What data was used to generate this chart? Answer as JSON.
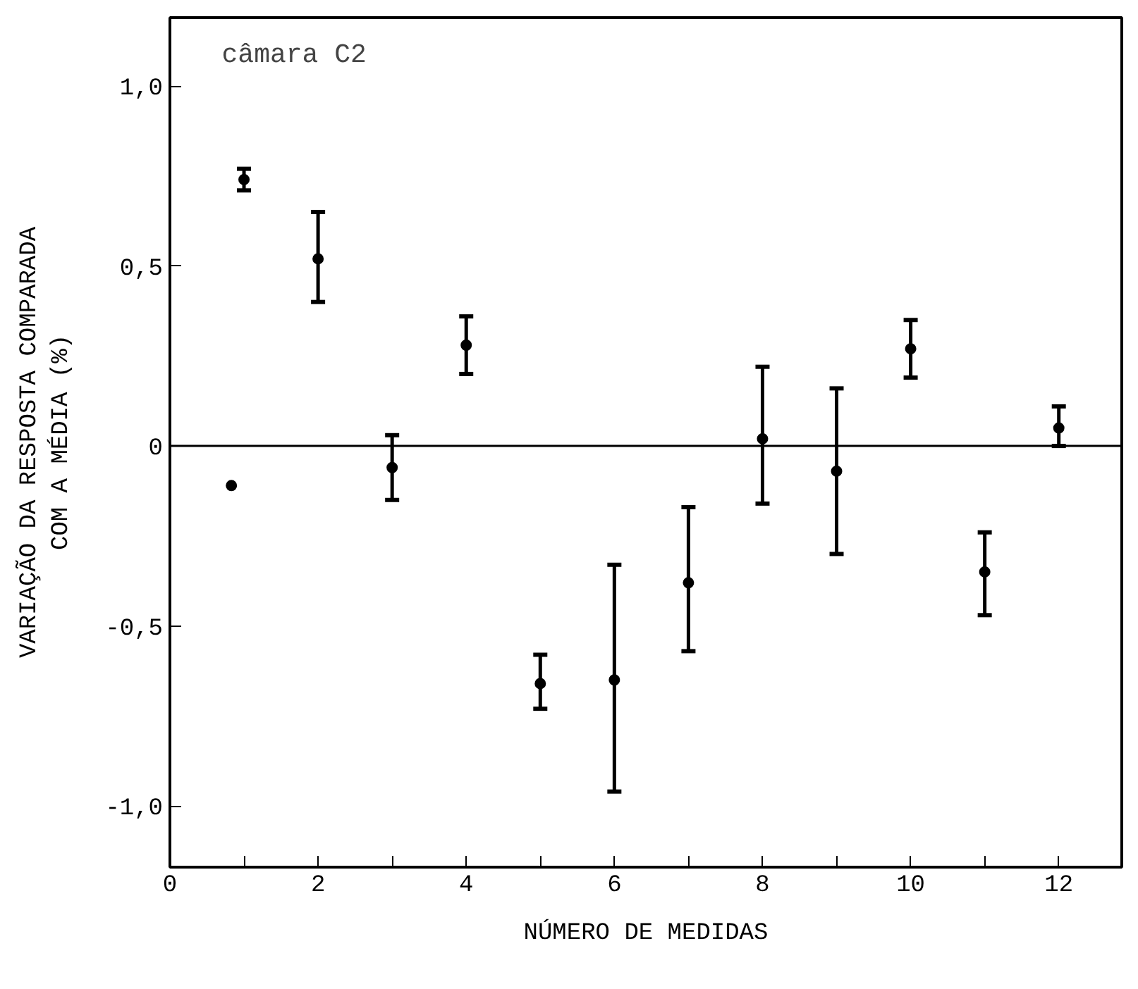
{
  "chart_data": {
    "type": "scatter",
    "xlabel": "NÚMERO DE MEDIDAS",
    "ylabel": "VARIAÇÃO DA RESPOSTA COMPARADA\nCOM A MÉDIA (%)",
    "annotations": [
      "câmara C2"
    ],
    "series": [
      {
        "color": "#000000",
        "x": [
          0.83,
          1,
          2,
          3,
          4,
          5,
          6,
          7,
          8,
          9,
          10,
          11,
          12
        ],
        "values": [
          -0.11,
          0.74,
          0.52,
          -0.06,
          0.28,
          -0.66,
          -0.65,
          -0.38,
          0.02,
          -0.07,
          0.27,
          -0.35,
          0.05
        ],
        "errors": [
          null,
          [
            0.71,
            0.77
          ],
          [
            0.4,
            0.65
          ],
          [
            -0.15,
            0.03
          ],
          [
            0.2,
            0.36
          ],
          [
            -0.73,
            -0.58
          ],
          [
            -0.96,
            -0.33
          ],
          [
            -0.57,
            -0.17
          ],
          [
            -0.16,
            0.22
          ],
          [
            -0.3,
            0.16
          ],
          [
            0.19,
            0.35
          ],
          [
            -0.47,
            -0.24
          ],
          [
            0.0,
            0.11
          ]
        ]
      }
    ],
    "marker": "circle",
    "xlim": [
      0,
      12.85
    ],
    "ylim": [
      -1.17,
      1.19
    ],
    "xticks": [
      0,
      {
        "value": 1,
        "label": null
      },
      2,
      {
        "value": 3,
        "label": null
      },
      4,
      {
        "value": 5,
        "label": null
      },
      6,
      {
        "value": 7,
        "label": null
      },
      8,
      {
        "value": 9,
        "label": null
      },
      10,
      {
        "value": 11,
        "label": null
      },
      12
    ],
    "yticks": [
      {
        "value": -1,
        "label": "-1,0"
      },
      {
        "value": -0.5,
        "label": "-0,5"
      },
      0,
      {
        "value": 0.5,
        "label": "0,5"
      },
      {
        "value": 1,
        "label": "1,0"
      }
    ],
    "ref_lines": [
      {
        "axis": "y",
        "value": 0,
        "color": "#000000"
      }
    ],
    "grid": false
  }
}
